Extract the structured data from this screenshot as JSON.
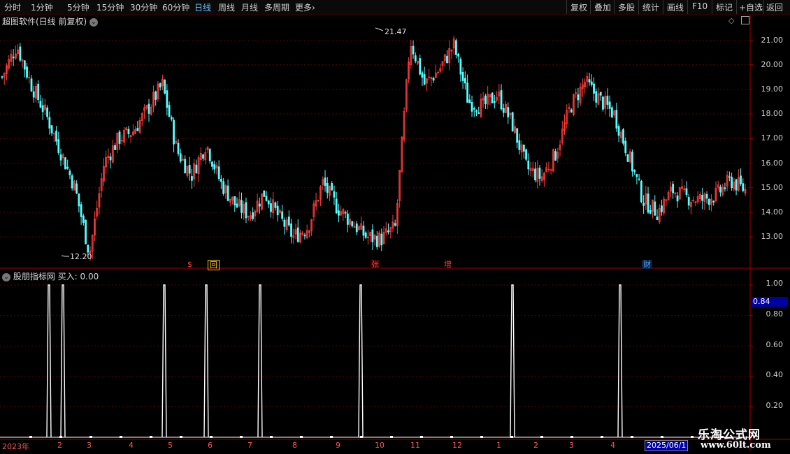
{
  "toolbar": {
    "periods": [
      "分时",
      "1分钟",
      "5分钟",
      "15分钟",
      "30分钟",
      "60分钟",
      "日线",
      "周线",
      "月线",
      "多周期",
      "更多"
    ],
    "active_period": "日线",
    "more_arrow": "›",
    "right_buttons": [
      "复权",
      "叠加",
      "多股",
      "统计",
      "画线",
      "F10",
      "标记",
      "+自选",
      "返回"
    ]
  },
  "main_panel": {
    "title": "超图软件(日线 前复权)",
    "high_label": "21.47",
    "low_label": "12.20",
    "event_badges": [
      {
        "text": "$",
        "color": "#ff4040"
      },
      {
        "text": "回",
        "color": "#ffcc00"
      },
      {
        "text": "张",
        "color": "#ff4040"
      },
      {
        "text": "增",
        "color": "#ff4040"
      },
      {
        "text": "财",
        "color": "#4aa8ff"
      }
    ],
    "y_ticks": [
      "21.00",
      "20.00",
      "19.00",
      "18.00",
      "17.00",
      "16.00",
      "15.00",
      "14.00",
      "13.00"
    ],
    "colors": {
      "up": "#ff3b3b",
      "down": "#54ffff",
      "grid": "#5a0000"
    }
  },
  "indicator_panel": {
    "title": "股朋指标网",
    "series_label": "买入: 0.00",
    "current_value": "0.84",
    "y_ticks": [
      "1.00",
      "0.80",
      "0.60",
      "0.40",
      "0.20"
    ],
    "signal_color": "#ffffff"
  },
  "x_axis": {
    "labels": [
      "2023年",
      "2",
      "3",
      "4",
      "5",
      "6",
      "7",
      "8",
      "9",
      "10",
      "11",
      "12",
      "1",
      "2",
      "3",
      "4"
    ],
    "current_date": "2025/06/1"
  },
  "watermark": {
    "line1": "乐淘公式网",
    "line2": "www.60lt.com"
  },
  "chart_data": {
    "type": "candlestick",
    "price_range": [
      12.2,
      21.47
    ],
    "approx_closes": [
      19.5,
      20.8,
      19.2,
      18.0,
      16.5,
      15.0,
      12.3,
      16.0,
      17.0,
      17.3,
      18.2,
      19.2,
      16.5,
      15.5,
      16.8,
      15.2,
      14.3,
      13.9,
      14.8,
      13.8,
      13.0,
      13.4,
      15.2,
      14.2,
      13.6,
      13.0,
      12.9,
      13.4,
      21.0,
      19.2,
      19.8,
      20.8,
      18.5,
      18.3,
      18.8,
      17.6,
      15.8,
      15.4,
      16.4,
      18.3,
      19.3,
      18.6,
      18.0,
      16.3,
      14.5,
      14.0,
      14.9,
      14.6,
      14.5,
      14.7,
      15.3,
      14.9
    ],
    "indicator_signal_positions": [
      70,
      90,
      235,
      295,
      372,
      516,
      733,
      887
    ],
    "indicator_signal_value": 1.0,
    "indicator_baseline": 0.0
  }
}
